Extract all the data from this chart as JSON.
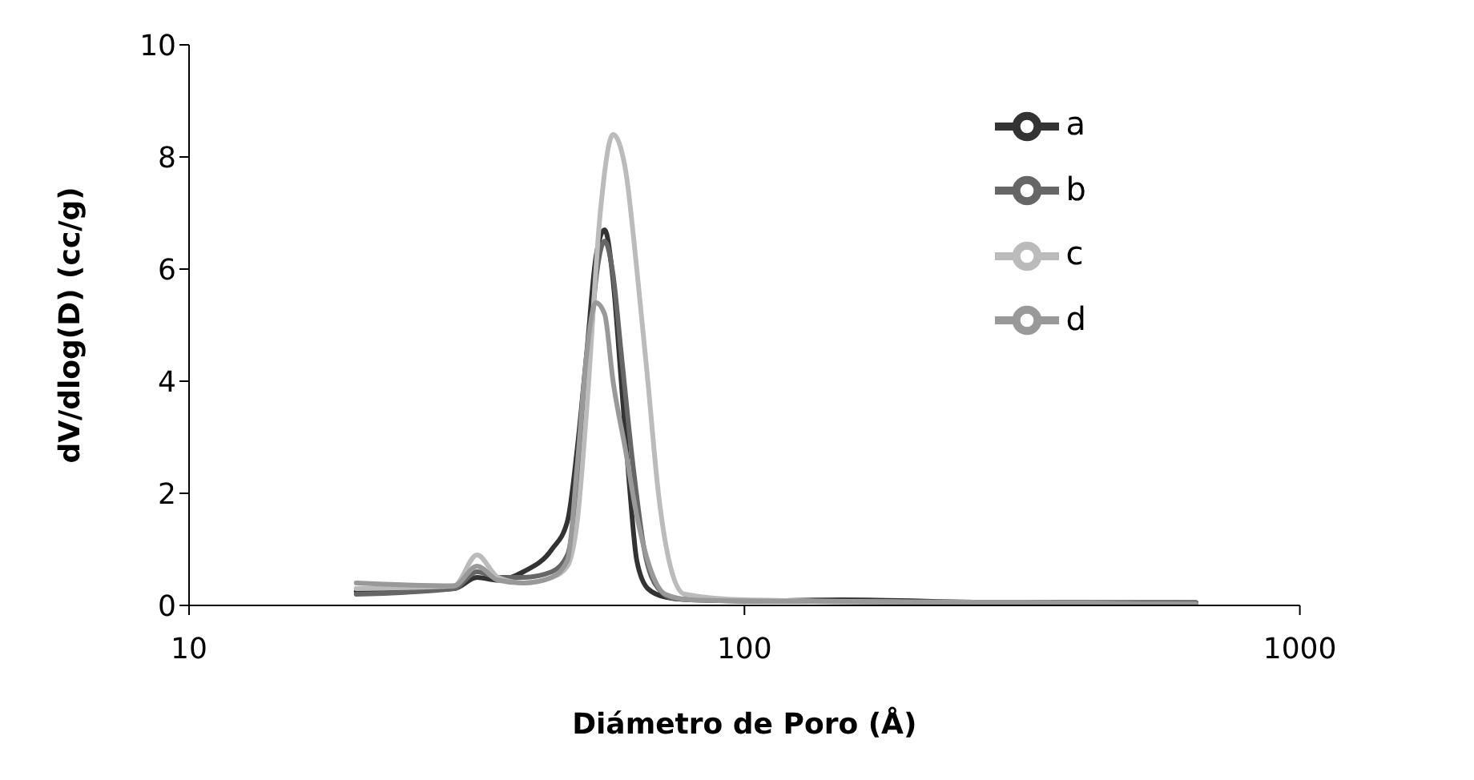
{
  "chart_data": {
    "type": "line",
    "xlabel": "Diámetro de Poro (Å)",
    "ylabel": "dV/dlog(D) (cc/g)",
    "log": "x",
    "xlim": [
      10,
      1000
    ],
    "xticks": [
      10,
      100,
      1000
    ],
    "ylim": [
      0,
      10
    ],
    "yticks": [
      0,
      2,
      4,
      6,
      8,
      10
    ],
    "grid": false,
    "legend": "top right",
    "marker": "none",
    "line_style": "solid",
    "series": [
      {
        "name": "a",
        "color": "#333333",
        "x": [
          20,
          30,
          33,
          36,
          40,
          45,
          48,
          50,
          52,
          54,
          56,
          58,
          60,
          62,
          64,
          67,
          72,
          80,
          100,
          150,
          300,
          650
        ],
        "values": [
          0.25,
          0.3,
          0.5,
          0.45,
          0.6,
          1.0,
          1.5,
          2.8,
          4.5,
          6.2,
          6.7,
          5.8,
          4.0,
          2.2,
          0.8,
          0.3,
          0.15,
          0.1,
          0.08,
          0.1,
          0.05,
          0.05
        ]
      },
      {
        "name": "b",
        "color": "#666666",
        "x": [
          20,
          30,
          33,
          36,
          40,
          45,
          48,
          50,
          52,
          54,
          56,
          58,
          60,
          63,
          66,
          70,
          75,
          100,
          300,
          650
        ],
        "values": [
          0.2,
          0.3,
          0.6,
          0.5,
          0.5,
          0.6,
          0.9,
          2.0,
          3.8,
          5.8,
          6.5,
          5.9,
          4.5,
          2.5,
          1.0,
          0.3,
          0.12,
          0.08,
          0.05,
          0.05
        ]
      },
      {
        "name": "c",
        "color": "#bbbbbb",
        "x": [
          20,
          30,
          33,
          36,
          40,
          45,
          48,
          50,
          52,
          55,
          58,
          61,
          64,
          67,
          70,
          74,
          78,
          100,
          300,
          650
        ],
        "values": [
          0.3,
          0.35,
          0.9,
          0.5,
          0.4,
          0.5,
          0.7,
          1.5,
          3.5,
          7.0,
          8.4,
          7.8,
          6.0,
          4.0,
          2.0,
          0.6,
          0.2,
          0.1,
          0.05,
          0.02
        ]
      },
      {
        "name": "d",
        "color": "#999999",
        "x": [
          20,
          30,
          33,
          36,
          40,
          45,
          48,
          50,
          52,
          54,
          56,
          58,
          61,
          64,
          68,
          72,
          80,
          100,
          300,
          650
        ],
        "values": [
          0.4,
          0.35,
          0.7,
          0.45,
          0.4,
          0.5,
          0.8,
          2.5,
          4.5,
          5.4,
          5.2,
          4.0,
          2.8,
          1.6,
          0.6,
          0.2,
          0.1,
          0.08,
          0.05,
          0.02
        ]
      }
    ]
  }
}
